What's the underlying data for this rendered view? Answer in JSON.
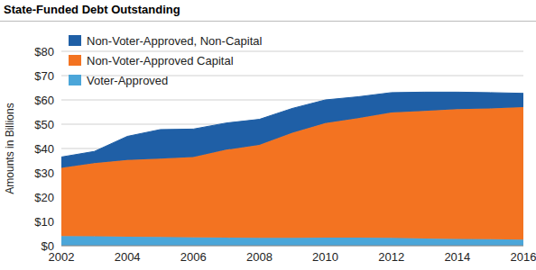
{
  "chart_data": {
    "type": "area",
    "title": "State-Funded Debt Outstanding",
    "y_label": "Amounts in Billions",
    "stacked": true,
    "grid": true,
    "legend": "upper left",
    "x": [
      2002,
      2003,
      2004,
      2005,
      2006,
      2007,
      2008,
      2009,
      2010,
      2011,
      2012,
      2013,
      2014,
      2015,
      2016
    ],
    "xlim": [
      2002,
      2016
    ],
    "xticks": [
      2002,
      2004,
      2006,
      2008,
      2010,
      2012,
      2014,
      2016
    ],
    "ylim": [
      0,
      80
    ],
    "yticks": [
      {
        "value": 0,
        "label": "$0"
      },
      {
        "value": 10,
        "label": "$10"
      },
      {
        "value": 20,
        "label": "$20"
      },
      {
        "value": 30,
        "label": "$30"
      },
      {
        "value": 40,
        "label": "$40"
      },
      {
        "value": 50,
        "label": "$50"
      },
      {
        "value": 60,
        "label": "$60"
      },
      {
        "value": 70,
        "label": "$70"
      },
      {
        "value": 80,
        "label": "$80"
      }
    ],
    "series": [
      {
        "name": "Voter-Approved",
        "color": "#4ba6d9",
        "values": [
          4,
          3.9,
          3.7,
          3.6,
          3.4,
          3.3,
          3.2,
          3.2,
          3.3,
          3.3,
          3.2,
          3.0,
          2.8,
          2.7,
          2.5
        ]
      },
      {
        "name": "Non-Voter-Approved Capital",
        "color": "#f37321",
        "values": [
          28,
          30.1,
          31.6,
          32.2,
          33.1,
          36.2,
          38.3,
          43.3,
          47.2,
          49.2,
          51.6,
          52.5,
          53.4,
          53.8,
          54.5
        ]
      },
      {
        "name": "Non-Voter-Approved, Non-Capital",
        "color": "#1f5fa6",
        "values": [
          4.5,
          4.8,
          9.7,
          12,
          11.5,
          11,
          10.5,
          10,
          9.5,
          8.8,
          8.2,
          7.7,
          7,
          6.5,
          5.7
        ]
      }
    ]
  }
}
